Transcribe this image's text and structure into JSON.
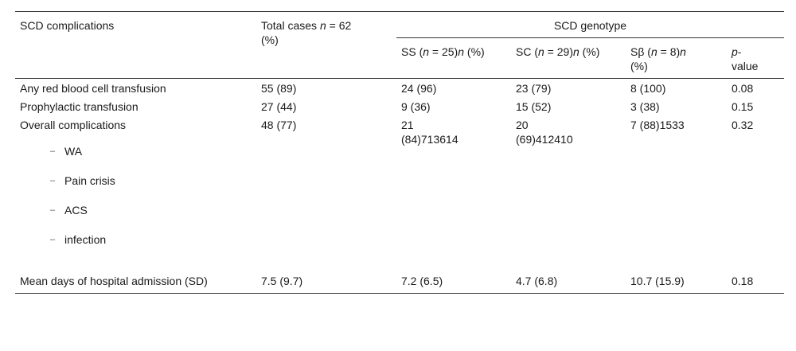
{
  "table": {
    "headers": {
      "col1": "SCD complications",
      "col2": "Total cases n = 62 (%)",
      "group": "SCD genotype",
      "ss": "SS (n = 25)n (%)",
      "sc": "SC (n = 29)n (%)",
      "sb": "Sβ (n = 8)n (%)",
      "p": "p-value"
    },
    "rows": [
      {
        "label": "Any red blood cell transfusion",
        "total": "55 (89)",
        "ss": "24 (96)",
        "sc": "23 (79)",
        "sb": "8 (100)",
        "p": "0.08"
      },
      {
        "label": "Prophylactic transfusion",
        "total": "27 (44)",
        "ss": "9 (36)",
        "sc": "15 (52)",
        "sb": "3 (38)",
        "p": "0.15"
      },
      {
        "label": "Overall complications",
        "total": "48 (77)",
        "ss": "21 (84)713614",
        "sc": "20 (69)412410",
        "sb": "7 (88)1533",
        "p": "0.32",
        "sub_items": [
          "WA",
          "Pain crisis",
          "ACS",
          "infection"
        ]
      },
      {
        "label": "Mean days of hospital admission (SD)",
        "total": "7.5 (9.7)",
        "ss": "7.2 (6.5)",
        "sc": "4.7 (6.8)",
        "sb": "10.7 (15.9)",
        "p": "0.18"
      }
    ],
    "dash": "–"
  }
}
